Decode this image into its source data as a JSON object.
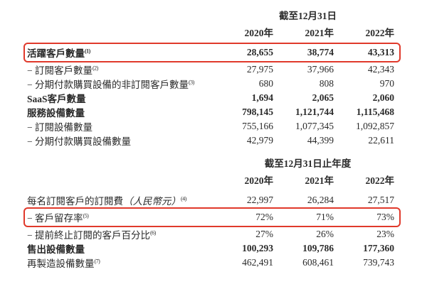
{
  "page": {
    "background_color": "#ffffff",
    "text_color": "#2a2a2a",
    "highlight_border_color": "#e0392b"
  },
  "section1": {
    "period_header": "截至12月31日",
    "years": [
      "2020年",
      "2021年",
      "2022年"
    ],
    "rows": [
      {
        "label": "活躍客戶數量",
        "sup": "(1)",
        "values": [
          "28,655",
          "38,774",
          "43,313"
        ],
        "bold": true,
        "highlighted": true
      },
      {
        "label": "− 訂閱客戶數量",
        "sup": "(2)",
        "values": [
          "27,975",
          "37,966",
          "42,343"
        ]
      },
      {
        "label": "− 分期付款購買設備的非訂閱客戶數量",
        "sup": "(3)",
        "values": [
          "680",
          "808",
          "970"
        ]
      },
      {
        "label": "SaaS客戶數量",
        "values": [
          "1,694",
          "2,065",
          "2,060"
        ],
        "bold": true
      },
      {
        "label": "服務設備數量",
        "values": [
          "798,145",
          "1,121,744",
          "1,115,468"
        ],
        "bold": true
      },
      {
        "label": "− 訂閱設備數量",
        "values": [
          "755,166",
          "1,077,345",
          "1,092,857"
        ]
      },
      {
        "label": "− 分期付款購買設備數量",
        "values": [
          "42,979",
          "44,399",
          "22,611"
        ]
      }
    ]
  },
  "section2": {
    "period_header": "截至12月31日止年度",
    "years": [
      "2020年",
      "2021年",
      "2022年"
    ],
    "rows": [
      {
        "label": "每名訂閱客戶的訂閱費",
        "label_italic": "（人民幣元）",
        "sup": "(4)",
        "values": [
          "22,997",
          "26,284",
          "27,517"
        ]
      },
      {
        "label": "− 客戶留存率",
        "sup": "(5)",
        "values": [
          "72%",
          "71%",
          "73%"
        ],
        "highlighted": true
      },
      {
        "label": "− 提前終止訂閱的客戶百分比",
        "sup": "(6)",
        "values": [
          "27%",
          "26%",
          "23%"
        ]
      },
      {
        "label": "售出設備數量",
        "values": [
          "100,293",
          "109,786",
          "177,360"
        ],
        "bold": true
      },
      {
        "label": "再製造設備數量",
        "sup": "(7)",
        "values": [
          "462,491",
          "608,461",
          "739,743"
        ]
      }
    ]
  }
}
